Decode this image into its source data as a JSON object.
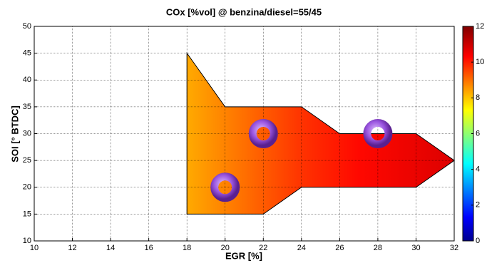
{
  "chart_data": {
    "type": "contour",
    "title": "COx [%vol] @ benzina/diesel=55/45",
    "x_label": "EGR [%]",
    "y_label": "SOI [° BTDC]",
    "xlim": [
      10,
      32
    ],
    "xticks": [
      10,
      12,
      14,
      16,
      18,
      20,
      22,
      24,
      26,
      28,
      30,
      32
    ],
    "ylim": [
      10,
      50
    ],
    "yticks": [
      10,
      15,
      20,
      25,
      30,
      35,
      40,
      45,
      50
    ],
    "grid": true,
    "region": {
      "x": [
        18,
        20,
        24,
        26,
        30,
        32,
        30,
        24,
        22,
        18
      ],
      "y": [
        45,
        35,
        35,
        30,
        30,
        25,
        20,
        20,
        15,
        15
      ]
    },
    "field": {
      "x": [
        18,
        21,
        24,
        27,
        32
      ],
      "z": [
        8.5,
        9.2,
        9.9,
        10.4,
        10.9
      ]
    },
    "zlim": [
      0,
      12
    ],
    "zticks": [
      0,
      2,
      4,
      6,
      8,
      10,
      12
    ],
    "markers": {
      "x": [
        22,
        20,
        28
      ],
      "y": [
        30,
        20,
        30
      ],
      "color": "#8a4fd0"
    }
  }
}
